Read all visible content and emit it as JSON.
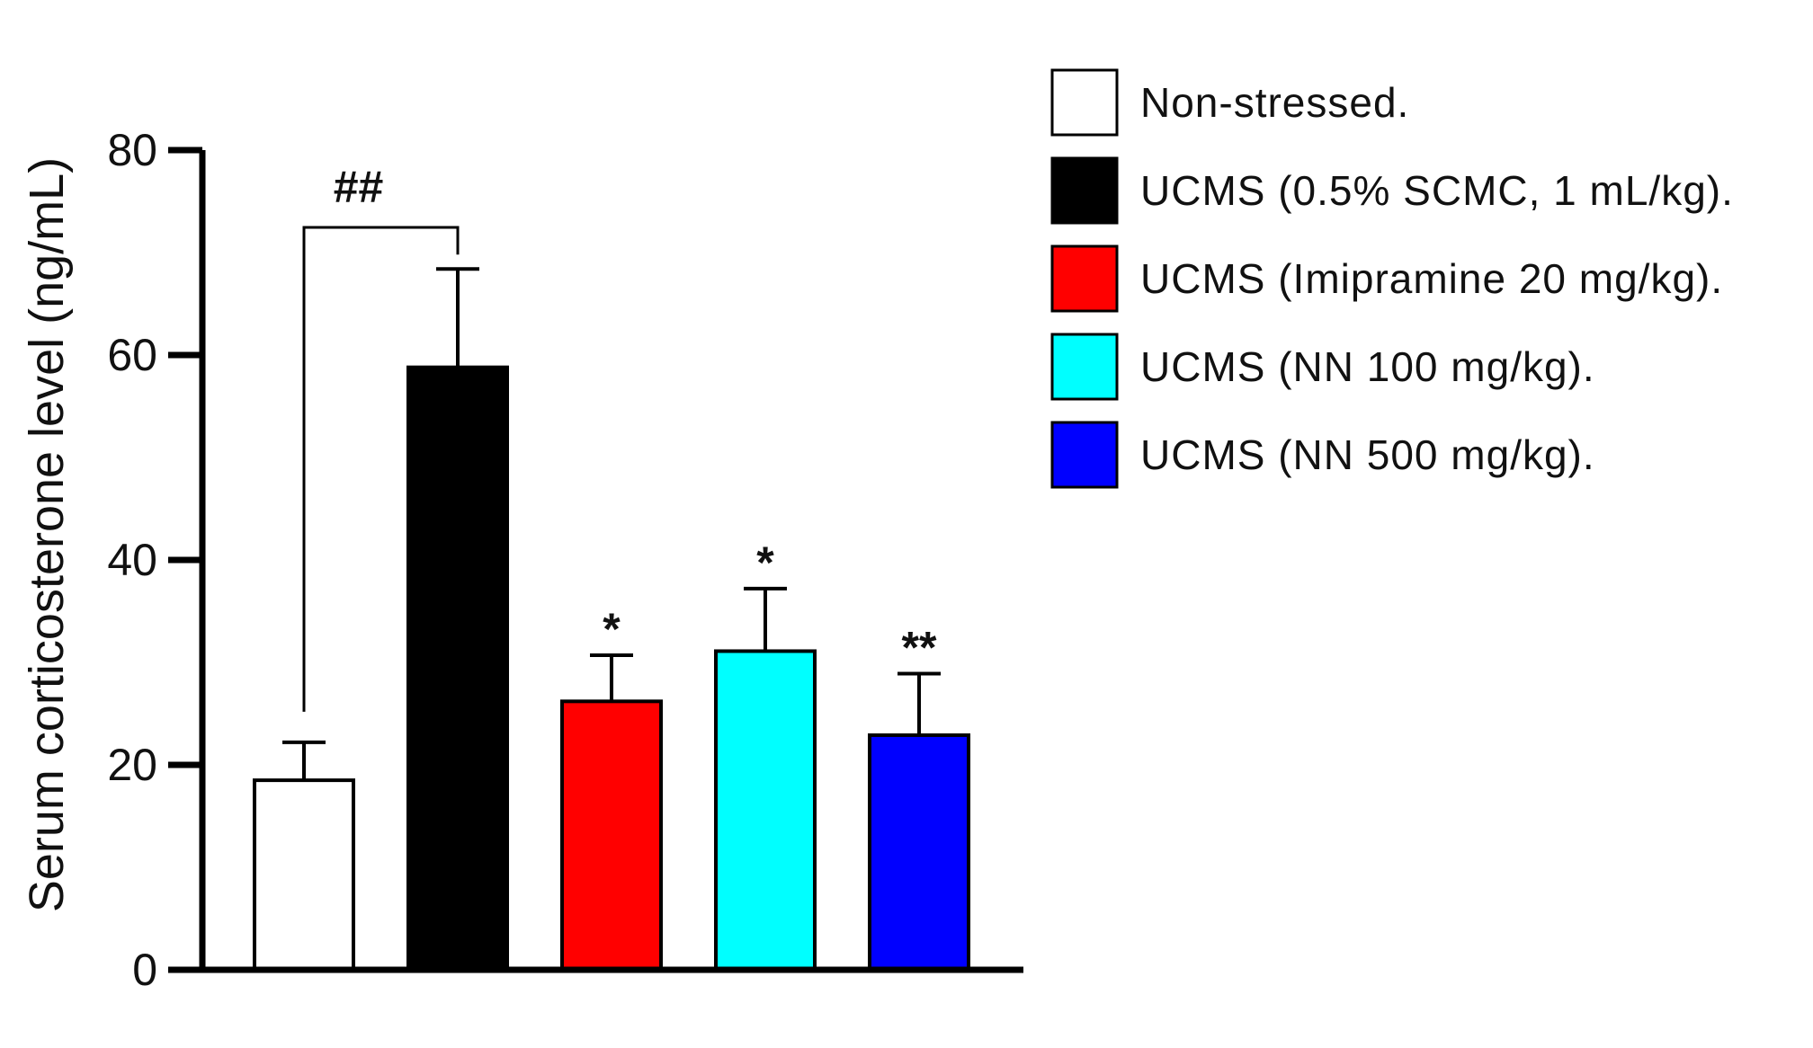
{
  "chart_data": {
    "type": "bar",
    "title": "",
    "xlabel": "",
    "ylabel": "Serum corticosterone level (ng/mL)",
    "ylim": [
      0,
      80
    ],
    "yticks": [
      0,
      20,
      40,
      60,
      80
    ],
    "grid": false,
    "legend_position": "top-right",
    "categories": [
      "Non-stressed.",
      "UCMS (0.5% SCMC, 1 mL/kg).",
      "UCMS (Imipramine 20 mg/kg).",
      "UCMS (NN 100 mg/kg).",
      "UCMS (NN 500 mg/kg)."
    ],
    "values": [
      18.5,
      58.8,
      26.2,
      31.1,
      22.9
    ],
    "errors": [
      3.7,
      9.6,
      4.5,
      6.1,
      6.0
    ],
    "colors": [
      "#ffffff",
      "#000000",
      "#ff0000",
      "#00ffff",
      "#0000ff"
    ],
    "significance": [
      "",
      "",
      "*",
      "*",
      "**"
    ],
    "comparison": {
      "from": 0,
      "to": 1,
      "label": "##"
    }
  }
}
